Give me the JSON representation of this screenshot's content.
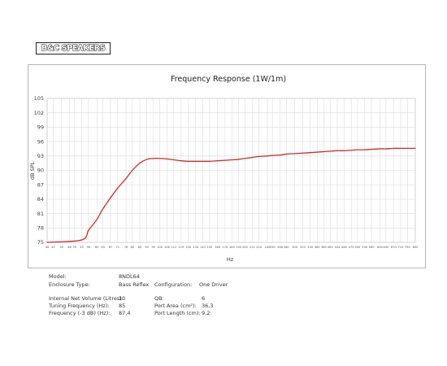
{
  "logo": {
    "text": "B&C SPEAKERS"
  },
  "chart_data": {
    "type": "line",
    "title": "Frequency Response (1W/1m)",
    "xlabel": "Hz",
    "ylabel": "dB SPL",
    "ylim": [
      75,
      105
    ],
    "yticks": [
      75,
      78,
      81,
      84,
      87,
      90,
      93,
      96,
      99,
      102,
      105
    ],
    "xticks": [
      "40",
      "42",
      "45",
      "48",
      "50",
      "53",
      "56",
      "60",
      "63",
      "67",
      "71",
      "76",
      "80",
      "85",
      "90",
      "95",
      "100",
      "106",
      "112",
      "119",
      "126",
      "134",
      "142",
      "150",
      "160",
      "170",
      "180",
      "190",
      "200",
      "212",
      "224",
      "240",
      "250",
      "266",
      "280",
      "300",
      "320",
      "340",
      "360",
      "380",
      "400",
      "424",
      "448",
      "475",
      "500",
      "530",
      "560",
      "600",
      "630",
      "670",
      "710",
      "750",
      "800"
    ],
    "grid": true,
    "series": [
      {
        "color": "#d62828",
        "x": [
          40,
          53,
          56,
          60,
          63,
          67,
          71,
          76,
          80,
          85,
          90,
          95,
          100,
          106,
          112,
          119,
          126,
          134,
          142,
          150,
          160,
          170,
          180,
          190,
          200,
          212,
          224,
          240,
          250,
          266,
          280,
          300,
          320,
          340,
          360,
          380,
          400,
          424,
          448,
          475,
          500,
          530,
          560,
          600,
          630,
          670,
          710,
          750,
          800
        ],
        "y": [
          75,
          75.5,
          77.5,
          79.8,
          82,
          84.3,
          86.3,
          88.3,
          90,
          91.5,
          92.3,
          92.5,
          92.5,
          92.4,
          92.2,
          92,
          91.9,
          91.9,
          91.9,
          91.9,
          92,
          92.1,
          92.2,
          92.3,
          92.5,
          92.7,
          92.9,
          93,
          93.1,
          93.2,
          93.4,
          93.5,
          93.6,
          93.7,
          93.8,
          93.9,
          94,
          94.1,
          94.1,
          94.2,
          94.3,
          94.3,
          94.4,
          94.5,
          94.5,
          94.6,
          94.6,
          94.6,
          94.6
        ]
      }
    ]
  },
  "specs": {
    "model_label": "Model:",
    "model_value": "8NDL64",
    "enclosure_label": "Enclosure Type:",
    "enclosure_value": "Bass Reflex",
    "configuration_label": "Configuration:",
    "configuration_value": "One Driver",
    "volume_label": "Internal Net Volume (Litres):",
    "volume_value": "10",
    "qb_label": "QB:",
    "qb_value": "6",
    "tuning_label": "Tuning Frequency (Hz):",
    "tuning_value": "85",
    "port_area_label": "Port Area (cm²):",
    "port_area_value": "36,3",
    "f3_label": "Frequency (-3 dB) (Hz):",
    "f3_value": "87,4",
    "port_length_label": "Port Length (cm):",
    "port_length_value": "9,2"
  }
}
